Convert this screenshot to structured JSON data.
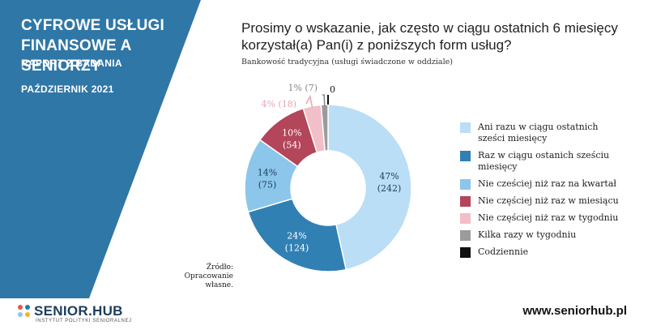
{
  "sidebar": {
    "title_line1": "CYFROWE USŁUGI",
    "title_line2": "FINANSOWE A SENIORZY",
    "subtitle": "RAPORT Z BADANIA",
    "date": "PAŹDZIERNIK 2021",
    "color": "#2f77a6"
  },
  "question": {
    "line1": "Prosimy o wskazanie, jak często w ciągu ostatnich 6 miesięcy",
    "line2": "korzystał(a) Pan(i) z poniższych form usług?"
  },
  "source_note": {
    "line1": "Źródło:",
    "line2": "Opracowanie",
    "line3": "własne."
  },
  "footer": {
    "logo_name": "SENIOR.HUB",
    "logo_tagline": "INSTYTUT POLITYKI SENIORALNEJ",
    "website": "www.seniorhub.pl"
  },
  "chart_data": {
    "type": "pie",
    "subtitle": "Bankowość tradycyjna (usługi świadczone w oddziale)",
    "series": [
      {
        "name": "Ani razu w ciągu ostatnich sześci miesięcy",
        "legend_line1": "Ani razu w ciągu ostatnich",
        "legend_line2": "sześci miesięcy",
        "percent_label": "47%",
        "count_label": "(242)",
        "value": 242,
        "color": "#b9def5"
      },
      {
        "name": "Raz w ciągu ostanich sześciu miesięcy",
        "legend_line1": "Raz w ciągu ostanich sześciu",
        "legend_line2": "miesięcy",
        "percent_label": "24%",
        "count_label": "(124)",
        "value": 124,
        "color": "#3180b4"
      },
      {
        "name": "Nie cześciej niż raz na kwartał",
        "legend_line1": "Nie cześciej niż raz na kwartał",
        "legend_line2": "",
        "percent_label": "14%",
        "count_label": "(75)",
        "value": 75,
        "color": "#8cc6ea"
      },
      {
        "name": "Nie częściej niż raz w miesiącu",
        "legend_line1": "Nie częściej niż raz w miesiącu",
        "legend_line2": "",
        "percent_label": "10%",
        "count_label": "(54)",
        "value": 54,
        "color": "#b3465a"
      },
      {
        "name": "Nie częściej niż raz w tygodniu",
        "legend_line1": "Nie częściej niż raz w tygodniu",
        "legend_line2": "",
        "percent_label": "4%",
        "count_label": "(18)",
        "value": 18,
        "color": "#f2bec7"
      },
      {
        "name": "Kilka razy w tygodniu",
        "legend_line1": "Kilka razy w tygodniu",
        "legend_line2": "",
        "percent_label": "1%",
        "count_label": "(7)",
        "value": 7,
        "color": "#9b9b9b"
      },
      {
        "name": "Codziennie",
        "legend_line1": "Codziennie",
        "legend_line2": "",
        "percent_label": "",
        "count_label": "0",
        "value": 0,
        "color": "#111111"
      }
    ]
  }
}
